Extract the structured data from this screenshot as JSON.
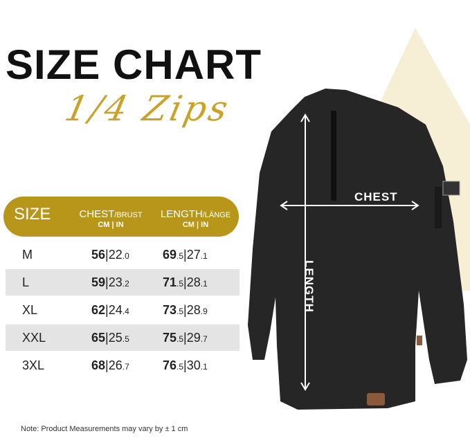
{
  "title": "SIZE CHART",
  "subtitle": "1/4 Zips",
  "table": {
    "headers": {
      "size": "SIZE",
      "chest": "CHEST",
      "chest_de": "/BRUST",
      "length": "LENGTH",
      "length_de": "/LÄNGE",
      "units": "CM | IN"
    },
    "rows": [
      {
        "size": "M",
        "chest_cm": "56",
        "chest_in": "22",
        "chest_in_dec": ".0",
        "len_cm": "69",
        "len_cm_dec": ".5",
        "len_in": "27",
        "len_in_dec": ".1"
      },
      {
        "size": "L",
        "chest_cm": "59",
        "chest_in": "23",
        "chest_in_dec": ".2",
        "len_cm": "71",
        "len_cm_dec": ".5",
        "len_in": "28",
        "len_in_dec": ".1"
      },
      {
        "size": "XL",
        "chest_cm": "62",
        "chest_in": "24",
        "chest_in_dec": ".4",
        "len_cm": "73",
        "len_cm_dec": ".5",
        "len_in": "28",
        "len_in_dec": ".9"
      },
      {
        "size": "XXL",
        "chest_cm": "65",
        "chest_in": "25",
        "chest_in_dec": ".5",
        "len_cm": "75",
        "len_cm_dec": ".5",
        "len_in": "29",
        "len_in_dec": ".7"
      },
      {
        "size": "3XL",
        "chest_cm": "68",
        "chest_in": "26",
        "chest_in_dec": ".7",
        "len_cm": "76",
        "len_cm_dec": ".5",
        "len_in": "30",
        "len_in_dec": ".1"
      }
    ]
  },
  "labels": {
    "chest": "CHEST",
    "length": "LENGTH"
  },
  "note": "Note: Product Measurements may vary by ± 1 cm",
  "colors": {
    "gold": "#b8961a",
    "garment": "#262626"
  }
}
